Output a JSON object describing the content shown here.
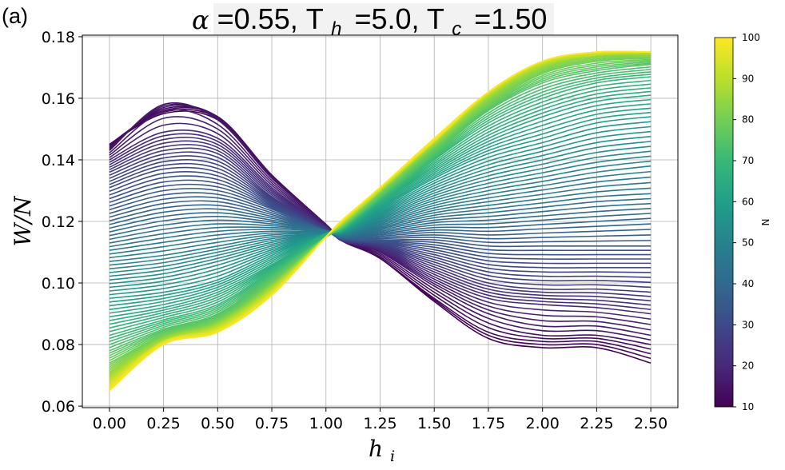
{
  "panel_label": "(a)",
  "title_parts": {
    "alpha_sym": "α",
    "alpha_val": "=0.55,",
    "th_main": "T",
    "th_sub": "h",
    "th_val": "=5.0,",
    "tc_main": "T",
    "tc_sub": "c",
    "tc_val": "=1.50"
  },
  "axes": {
    "ylabel": "W/N",
    "xlabel_main": "h",
    "xlabel_sub": "i"
  },
  "colorbar": {
    "label": "N",
    "range": [
      10,
      100
    ],
    "ticks": [
      "10",
      "20",
      "30",
      "40",
      "50",
      "60",
      "70",
      "80",
      "90",
      "100"
    ],
    "colormap": "viridis"
  },
  "chart_data": {
    "type": "line",
    "grid": true,
    "xlim": [
      -0.125,
      2.625
    ],
    "ylim": [
      0.0595,
      0.1805
    ],
    "xticks": [
      "0.00",
      "0.25",
      "0.50",
      "0.75",
      "1.00",
      "1.25",
      "1.50",
      "1.75",
      "2.00",
      "2.25",
      "2.50"
    ],
    "yticks": [
      "0.06",
      "0.08",
      "0.10",
      "0.12",
      "0.14",
      "0.16",
      "0.18"
    ],
    "x": [
      0,
      0.25,
      0.5,
      0.75,
      1.0,
      1.08,
      1.25,
      1.5,
      1.75,
      2.0,
      2.25,
      2.5
    ],
    "series_note_N": [
      10,
      100
    ],
    "series": [
      {
        "N": 10,
        "values": [
          0.145,
          0.155,
          0.153,
          0.135,
          0.119,
          0.1135,
          0.108,
          0.094,
          0.082,
          0.079,
          0.079,
          0.074
        ]
      },
      {
        "N": 12,
        "values": [
          0.145,
          0.156,
          0.154,
          0.135,
          0.119,
          0.1135,
          0.108,
          0.095,
          0.084,
          0.081,
          0.081,
          0.077
        ]
      },
      {
        "N": 14,
        "values": [
          0.144,
          0.157,
          0.154,
          0.135,
          0.119,
          0.1135,
          0.109,
          0.097,
          0.087,
          0.083,
          0.083,
          0.08
        ]
      },
      {
        "N": 16,
        "values": [
          0.143,
          0.158,
          0.153,
          0.134,
          0.119,
          0.1135,
          0.11,
          0.099,
          0.09,
          0.086,
          0.086,
          0.083
        ]
      },
      {
        "N": 20,
        "values": [
          0.14,
          0.149,
          0.147,
          0.131,
          0.118,
          0.1135,
          0.111,
          0.102,
          0.095,
          0.093,
          0.092,
          0.09
        ]
      },
      {
        "N": 25,
        "values": [
          0.136,
          0.143,
          0.142,
          0.128,
          0.118,
          0.1138,
          0.112,
          0.106,
          0.1,
          0.098,
          0.098,
          0.097
        ]
      },
      {
        "N": 30,
        "values": [
          0.131,
          0.137,
          0.136,
          0.126,
          0.117,
          0.114,
          0.113,
          0.11,
          0.106,
          0.105,
          0.105,
          0.105
        ]
      },
      {
        "N": 35,
        "values": [
          0.125,
          0.13,
          0.13,
          0.124,
          0.117,
          0.1143,
          0.114,
          0.114,
          0.112,
          0.112,
          0.112,
          0.112
        ]
      },
      {
        "N": 40,
        "values": [
          0.119,
          0.123,
          0.124,
          0.121,
          0.117,
          0.1148,
          0.116,
          0.118,
          0.118,
          0.119,
          0.12,
          0.121
        ]
      },
      {
        "N": 45,
        "values": [
          0.113,
          0.116,
          0.118,
          0.118,
          0.117,
          0.1153,
          0.118,
          0.122,
          0.124,
          0.126,
          0.128,
          0.129
        ]
      },
      {
        "N": 50,
        "values": [
          0.107,
          0.109,
          0.112,
          0.115,
          0.116,
          0.1158,
          0.12,
          0.126,
          0.13,
          0.133,
          0.136,
          0.138
        ]
      },
      {
        "N": 55,
        "values": [
          0.101,
          0.103,
          0.107,
          0.112,
          0.116,
          0.1163,
          0.122,
          0.13,
          0.136,
          0.14,
          0.144,
          0.146
        ]
      },
      {
        "N": 60,
        "values": [
          0.095,
          0.097,
          0.101,
          0.109,
          0.116,
          0.1168,
          0.124,
          0.134,
          0.142,
          0.147,
          0.152,
          0.154
        ]
      },
      {
        "N": 65,
        "values": [
          0.089,
          0.092,
          0.097,
          0.106,
          0.116,
          0.1173,
          0.126,
          0.137,
          0.147,
          0.154,
          0.159,
          0.161
        ]
      },
      {
        "N": 70,
        "values": [
          0.083,
          0.088,
          0.093,
          0.104,
          0.115,
          0.1178,
          0.127,
          0.14,
          0.152,
          0.16,
          0.165,
          0.167
        ]
      },
      {
        "N": 75,
        "values": [
          0.078,
          0.085,
          0.09,
          0.102,
          0.115,
          0.1183,
          0.128,
          0.142,
          0.156,
          0.165,
          0.169,
          0.171
        ]
      },
      {
        "N": 80,
        "values": [
          0.074,
          0.083,
          0.088,
          0.1,
          0.115,
          0.1188,
          0.129,
          0.144,
          0.158,
          0.168,
          0.172,
          0.173
        ]
      },
      {
        "N": 85,
        "values": [
          0.071,
          0.082,
          0.087,
          0.099,
          0.115,
          0.1193,
          0.13,
          0.145,
          0.16,
          0.17,
          0.174,
          0.174
        ]
      },
      {
        "N": 90,
        "values": [
          0.069,
          0.081,
          0.086,
          0.098,
          0.115,
          0.1198,
          0.13,
          0.146,
          0.161,
          0.171,
          0.174,
          0.175
        ]
      },
      {
        "N": 95,
        "values": [
          0.067,
          0.081,
          0.085,
          0.097,
          0.115,
          0.1203,
          0.131,
          0.146,
          0.162,
          0.172,
          0.175,
          0.175
        ]
      },
      {
        "N": 100,
        "values": [
          0.065,
          0.08,
          0.084,
          0.096,
          0.115,
          0.1208,
          0.131,
          0.147,
          0.162,
          0.172,
          0.175,
          0.175
        ]
      }
    ]
  }
}
